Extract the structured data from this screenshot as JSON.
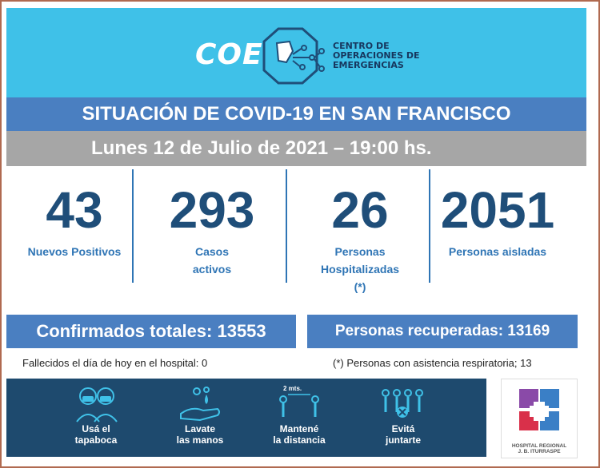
{
  "header": {
    "logo_abbr": "COE",
    "logo_name_line1": "CENTRO DE",
    "logo_name_line2": "OPERACIONES DE",
    "logo_name_line3": "EMERGENCIAS",
    "brand_color": "#3fc1e8"
  },
  "title": "SITUACIÓN DE COVID-19 EN SAN FRANCISCO",
  "date": "Lunes 12 de Julio de 2021 – 19:00 hs.",
  "stats": [
    {
      "value": "43",
      "label_line1": "Nuevos Positivos",
      "label_line2": "",
      "label_line3": ""
    },
    {
      "value": "293",
      "label_line1": "Casos",
      "label_line2": "activos",
      "label_line3": ""
    },
    {
      "value": "26",
      "label_line1": "Personas",
      "label_line2": "Hospitalizadas",
      "label_line3": "(*)"
    },
    {
      "value": "2051",
      "label_line1": "Personas aisladas",
      "label_line2": "",
      "label_line3": ""
    }
  ],
  "confirmed": "Confirmados totales: 13553",
  "recovered": "Personas recuperadas: 13169",
  "deaths_note": "Fallecidos el día de hoy en el hospital: 0",
  "respiratory_note": "(*) Personas con asistencia respiratoria; 13",
  "tips": [
    {
      "line1": "Usá el",
      "line2": "tapaboca",
      "icon": "mask-icon"
    },
    {
      "line1": "Lavate",
      "line2": "las manos",
      "icon": "handwash-icon"
    },
    {
      "line1": "Mantené",
      "line2": "la distancia",
      "icon": "distance-icon",
      "extra": "2 mts."
    },
    {
      "line1": "Evitá",
      "line2": "juntarte",
      "icon": "crowd-icon"
    }
  ],
  "hospital": {
    "line1": "HOSPITAL REGIONAL",
    "line2": "J. B. ITURRASPE"
  },
  "colors": {
    "title_bar": "#4a7fc1",
    "date_bar": "#a6a6a6",
    "number": "#1f4e79",
    "label": "#2f75b5",
    "footer": "#1e4a6e"
  }
}
